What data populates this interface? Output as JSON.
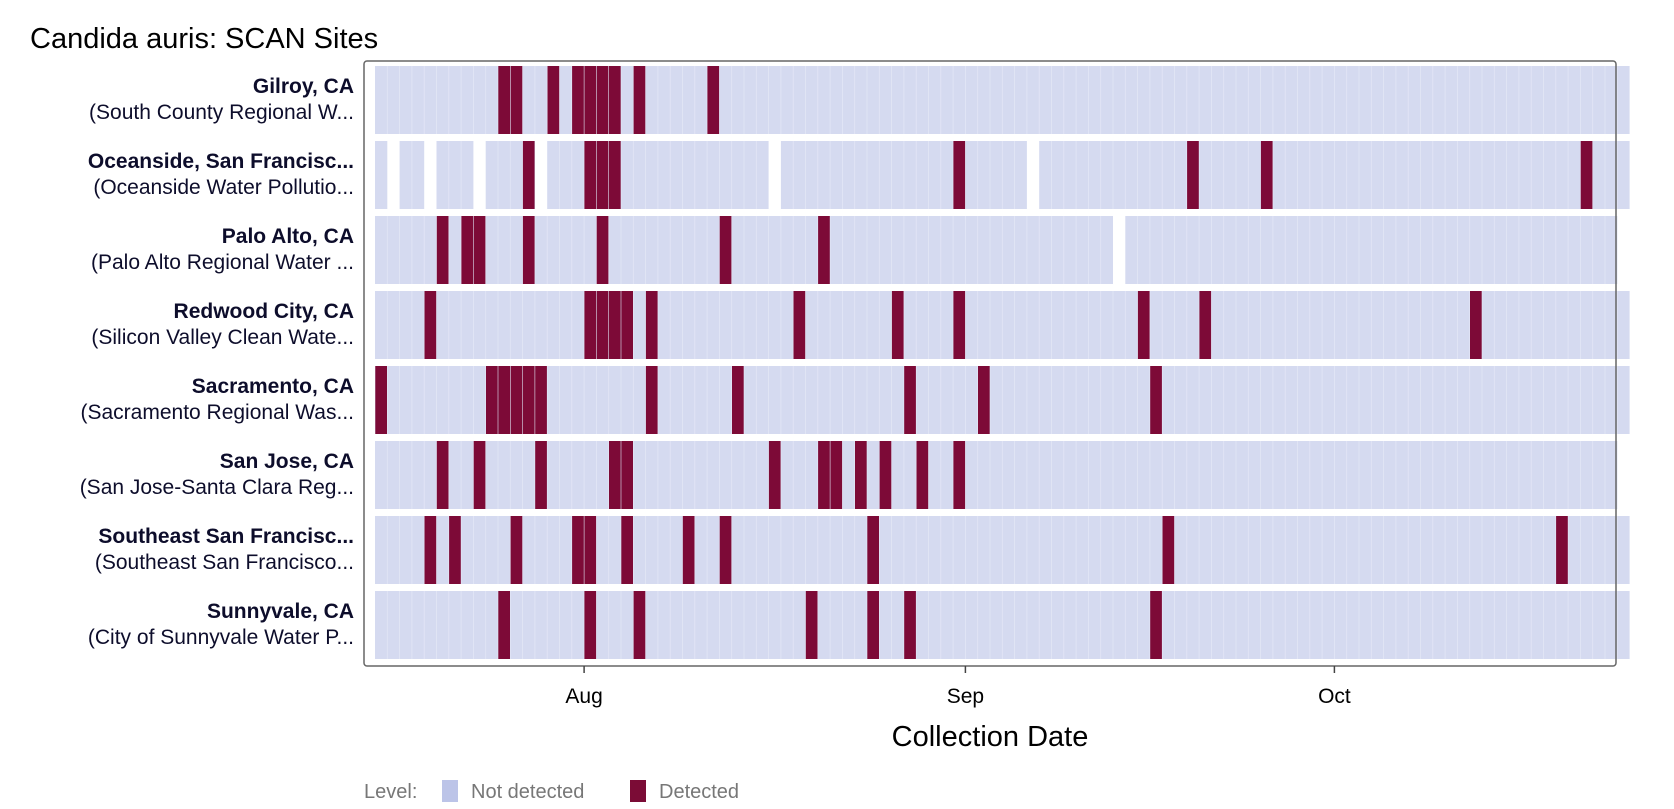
{
  "chart_data": {
    "type": "heatmap",
    "title": "Candida auris: SCAN Sites",
    "xlabel": "Collection Date",
    "ylabel": "",
    "x_range": [
      "2023-07-15",
      "2023-10-25"
    ],
    "x_ticks": [
      {
        "date": "2023-08-01",
        "label": "Aug"
      },
      {
        "date": "2023-09-01",
        "label": "Sep"
      },
      {
        "date": "2023-10-01",
        "label": "Oct"
      }
    ],
    "grid": false,
    "legend": {
      "title": "Level:",
      "placement": "bottom-left",
      "entries": [
        {
          "label": "Not detected",
          "color": "#bcc4e8"
        },
        {
          "label": "Detected",
          "color": "#7b0c36"
        }
      ]
    },
    "colors": {
      "not_detected": "#d5daf0",
      "detected": "#7d0a37",
      "panel_border": "#666666"
    },
    "sites": [
      {
        "name": "Gilroy, CA",
        "plant": "(South County Regional W...",
        "segments": [
          [
            "2023-07-15",
            "2023-10-24"
          ]
        ],
        "detected": [
          "2023-07-25",
          "2023-07-26",
          "2023-07-29",
          "2023-07-31",
          "2023-08-01",
          "2023-08-02",
          "2023-08-03",
          "2023-08-05",
          "2023-08-11"
        ]
      },
      {
        "name": "Oceanside, San Francisc...",
        "plant": "(Oceanside Water Pollutio...",
        "segments": [
          [
            "2023-07-15",
            "2023-07-15"
          ],
          [
            "2023-07-17",
            "2023-07-18"
          ],
          [
            "2023-07-20",
            "2023-07-22"
          ],
          [
            "2023-07-24",
            "2023-07-27"
          ],
          [
            "2023-07-29",
            "2023-08-15"
          ],
          [
            "2023-08-17",
            "2023-09-05"
          ],
          [
            "2023-09-07",
            "2023-10-24"
          ]
        ],
        "detected": [
          "2023-07-27",
          "2023-08-01",
          "2023-08-02",
          "2023-08-03",
          "2023-08-31",
          "2023-09-19",
          "2023-09-25",
          "2023-10-21"
        ]
      },
      {
        "name": "Palo Alto, CA",
        "plant": "(Palo Alto Regional Water ...",
        "segments": [
          [
            "2023-07-15",
            "2023-09-12"
          ],
          [
            "2023-09-14",
            "2023-10-23"
          ]
        ],
        "detected": [
          "2023-07-20",
          "2023-07-22",
          "2023-07-23",
          "2023-07-27",
          "2023-08-02",
          "2023-08-12",
          "2023-08-20"
        ]
      },
      {
        "name": "Redwood City, CA",
        "plant": "(Silicon Valley Clean Wate...",
        "segments": [
          [
            "2023-07-15",
            "2023-10-24"
          ]
        ],
        "detected": [
          "2023-07-19",
          "2023-08-01",
          "2023-08-02",
          "2023-08-03",
          "2023-08-04",
          "2023-08-06",
          "2023-08-18",
          "2023-08-26",
          "2023-08-31",
          "2023-09-15",
          "2023-09-20",
          "2023-10-12"
        ]
      },
      {
        "name": "Sacramento, CA",
        "plant": "(Sacramento Regional Was...",
        "segments": [
          [
            "2023-07-15",
            "2023-10-24"
          ]
        ],
        "detected": [
          "2023-07-15",
          "2023-07-24",
          "2023-07-25",
          "2023-07-26",
          "2023-07-27",
          "2023-07-28",
          "2023-08-06",
          "2023-08-13",
          "2023-08-27",
          "2023-09-02",
          "2023-09-16"
        ]
      },
      {
        "name": "San Jose, CA",
        "plant": "(San Jose-Santa Clara Reg...",
        "segments": [
          [
            "2023-07-15",
            "2023-10-23"
          ]
        ],
        "detected": [
          "2023-07-20",
          "2023-07-23",
          "2023-07-28",
          "2023-08-03",
          "2023-08-04",
          "2023-08-16",
          "2023-08-20",
          "2023-08-21",
          "2023-08-23",
          "2023-08-25",
          "2023-08-28",
          "2023-08-31"
        ]
      },
      {
        "name": "Southeast San Francisc...",
        "plant": "(Southeast San Francisco...",
        "segments": [
          [
            "2023-07-15",
            "2023-10-24"
          ]
        ],
        "detected": [
          "2023-07-19",
          "2023-07-21",
          "2023-07-26",
          "2023-07-31",
          "2023-08-01",
          "2023-08-04",
          "2023-08-09",
          "2023-08-12",
          "2023-08-24",
          "2023-09-17",
          "2023-10-19"
        ]
      },
      {
        "name": "Sunnyvale, CA",
        "plant": "(City of Sunnyvale Water P...",
        "segments": [
          [
            "2023-07-15",
            "2023-10-24"
          ]
        ],
        "detected": [
          "2023-07-25",
          "2023-08-01",
          "2023-08-05",
          "2023-08-19",
          "2023-08-24",
          "2023-08-27",
          "2023-09-16"
        ]
      }
    ]
  }
}
